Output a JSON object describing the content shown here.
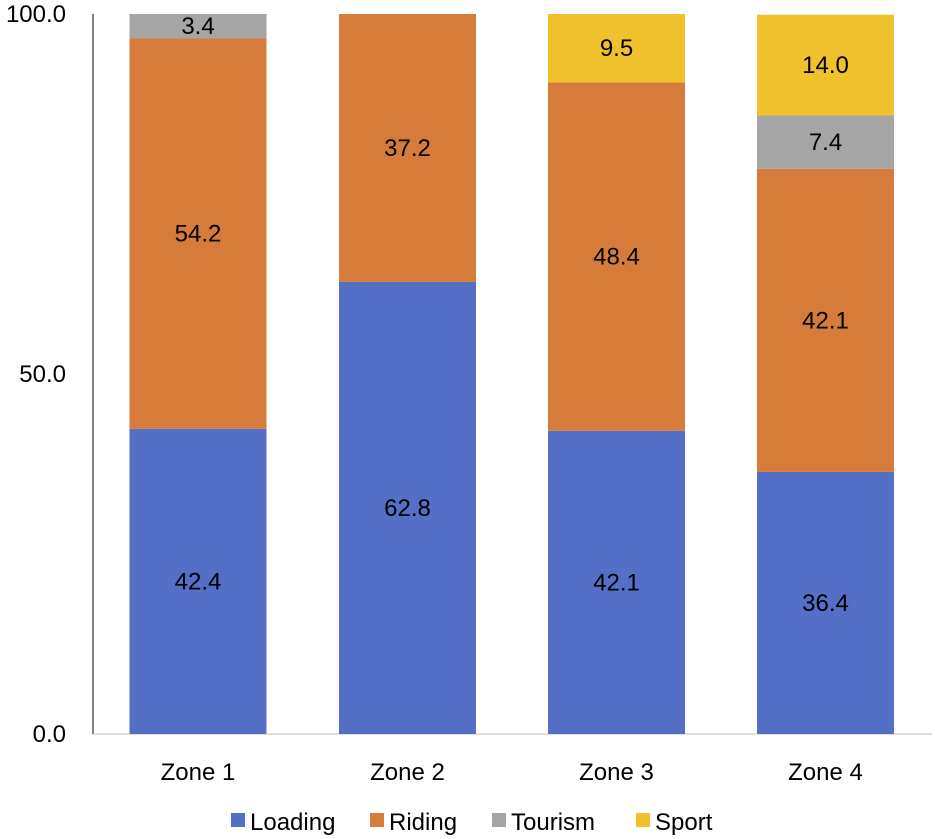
{
  "chart_data": {
    "type": "bar",
    "stacked": true,
    "categories": [
      "Zone 1",
      "Zone 2",
      "Zone 3",
      "Zone 4"
    ],
    "series": [
      {
        "name": "Loading",
        "color": "#5470C6",
        "values": [
          42.4,
          62.8,
          42.1,
          36.4
        ]
      },
      {
        "name": "Riding",
        "color": "#D77B3A",
        "values": [
          54.2,
          37.2,
          48.4,
          42.1
        ]
      },
      {
        "name": "Tourism",
        "color": "#A5A5A5",
        "values": [
          3.4,
          0,
          0,
          7.4
        ]
      },
      {
        "name": "Sport",
        "color": "#EEC12D",
        "values": [
          0,
          0,
          9.5,
          14.0
        ]
      }
    ],
    "ylim": [
      0,
      100
    ],
    "yticks": [
      "0.0",
      "50.0",
      "100.0"
    ],
    "ytick_values": [
      0,
      50,
      100
    ],
    "grid": false,
    "legend_position": "bottom"
  }
}
